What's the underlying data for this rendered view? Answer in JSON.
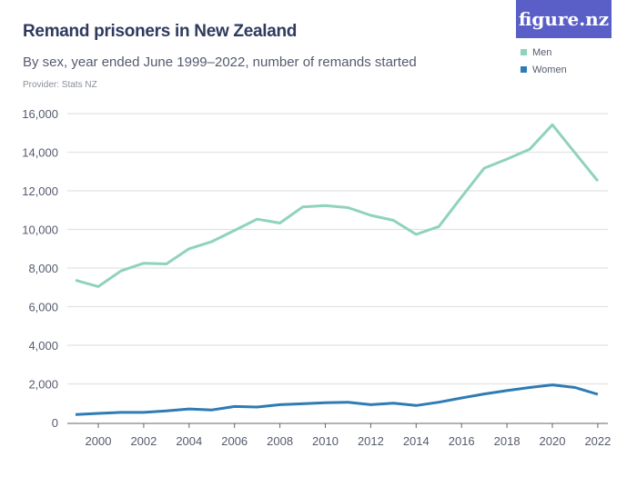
{
  "logo": "figure.nz",
  "chart_data": {
    "type": "line",
    "title": "Remand prisoners in New Zealand",
    "subtitle": "By sex, year ended June 1999–2022, number of remands started",
    "provider": "Provider: Stats NZ",
    "x": [
      1999,
      2000,
      2001,
      2002,
      2003,
      2004,
      2005,
      2006,
      2007,
      2008,
      2009,
      2010,
      2011,
      2012,
      2013,
      2014,
      2015,
      2016,
      2017,
      2018,
      2019,
      2020,
      2021,
      2022
    ],
    "x_ticks": [
      "2000",
      "2002",
      "2004",
      "2006",
      "2008",
      "2010",
      "2012",
      "2014",
      "2016",
      "2018",
      "2020",
      "2022"
    ],
    "y_ticks": [
      "0",
      "2,000",
      "4,000",
      "6,000",
      "8,000",
      "10,000",
      "12,000",
      "14,000",
      "16,000"
    ],
    "ylim": [
      0,
      16000
    ],
    "grid": true,
    "legend_position": "top-right",
    "series": [
      {
        "name": "Men",
        "color": "#8fd3bc",
        "values": [
          7370,
          7040,
          7850,
          8250,
          8210,
          9000,
          9370,
          9950,
          10530,
          10330,
          11160,
          11240,
          11130,
          10730,
          10470,
          9740,
          10150,
          11680,
          13170,
          13640,
          14150,
          15420,
          13960,
          12510
        ]
      },
      {
        "name": "Women",
        "color": "#2e7bb5",
        "values": [
          410,
          470,
          520,
          520,
          600,
          700,
          650,
          830,
          800,
          920,
          970,
          1020,
          1050,
          920,
          1000,
          880,
          1050,
          1270,
          1480,
          1650,
          1810,
          1950,
          1810,
          1460
        ]
      }
    ]
  }
}
